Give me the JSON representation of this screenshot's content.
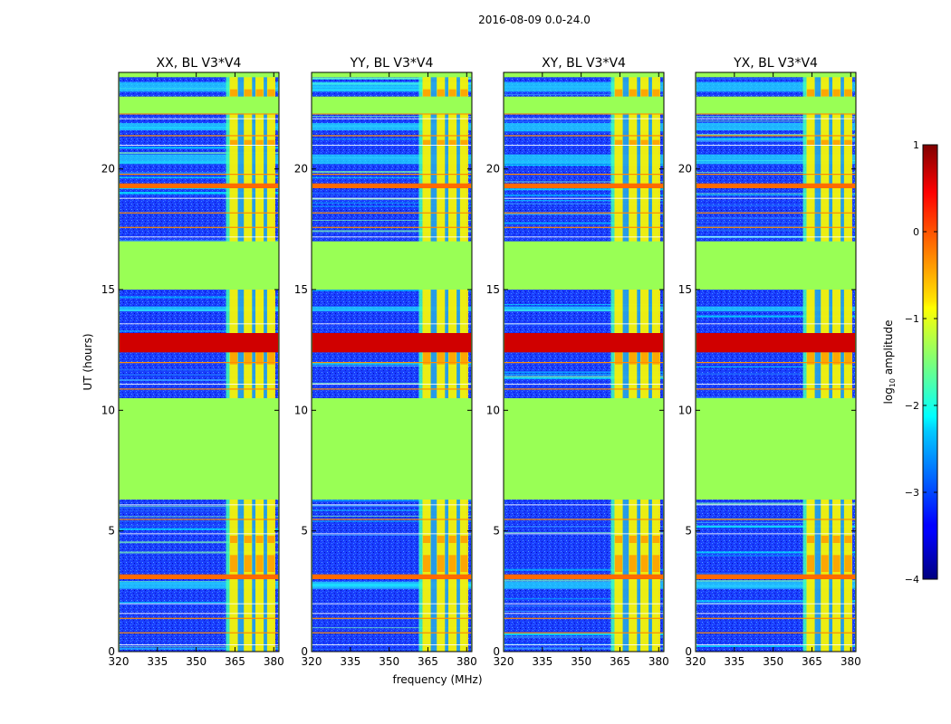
{
  "figure": {
    "suptitle": "2016-08-09 0.0-24.0",
    "xlabel": "frequency (MHz)",
    "ylabel": "UT (hours)"
  },
  "colorbar": {
    "label_prefix": "log",
    "label_sub": "10",
    "label_suffix": " amplitude",
    "range": [
      -4,
      1
    ],
    "ticks": [
      1,
      0,
      -1,
      -2,
      -3,
      -4
    ],
    "tick_labels": [
      "1",
      "0",
      "−1",
      "−2",
      "−3",
      "−4"
    ],
    "colormap": "jet"
  },
  "chart_data": {
    "type": "heatmap",
    "description_ranges": {
      "x_range_mhz": [
        320,
        382
      ],
      "y_range_hours": [
        0,
        24.0
      ],
      "x_ticks": [
        320,
        335,
        350,
        365,
        380
      ],
      "y_ticks": [
        0,
        5,
        10,
        15,
        20
      ]
    },
    "panels": [
      {
        "title": "XX, BL V3*V4",
        "polarization": "XX"
      },
      {
        "title": "YY, BL V3*V4",
        "polarization": "YY"
      },
      {
        "title": "XY, BL V3*V4",
        "polarization": "XY"
      },
      {
        "title": "YX, BL V3*V4",
        "polarization": "YX"
      }
    ],
    "flagged_color": "#99ff55",
    "flagged_time_ranges_hours": [
      [
        6.3,
        10.5
      ],
      [
        15.0,
        17.0
      ],
      [
        22.3,
        23.0
      ],
      [
        23.8,
        24.0
      ]
    ],
    "flagged_freq_ranges_mhz": [
      [
        320,
        320.3
      ],
      [
        381.7,
        382
      ]
    ],
    "rfi_band_mhz": [
      361.5,
      380
    ],
    "rfi_channels_mhz": [
      364.5,
      370,
      374.5,
      379
    ],
    "bright_time_bands_hours": [
      [
        12.4,
        13.2
      ],
      [
        3.0,
        3.2
      ],
      [
        19.2,
        19.4
      ]
    ],
    "background_log_amplitude": -3
  }
}
